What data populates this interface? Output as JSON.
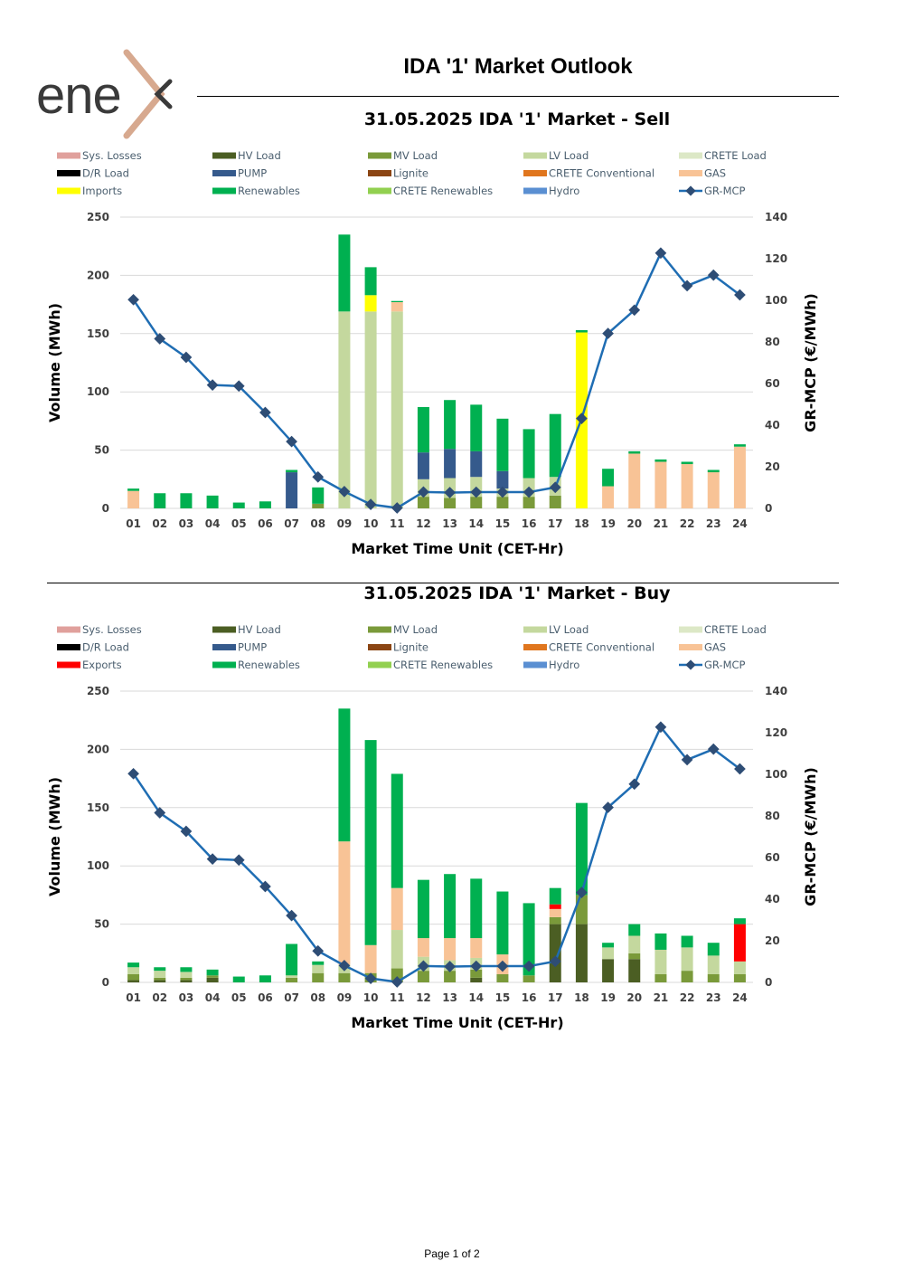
{
  "page": {
    "title": "IDA '1' Market Outlook",
    "footer": "Page 1 of 2",
    "logo_text": "ene"
  },
  "colors": {
    "Sys. Losses": "#e0a09c",
    "HV Load": "#4b5e23",
    "MV Load": "#7a9a3a",
    "LV Load": "#c4d89e",
    "CRETE Load": "#dce8c6",
    "D/R Load": "#000000",
    "PUMP": "#355a8c",
    "Lignite": "#8b4513",
    "CRETE Conventional": "#e0761e",
    "GAS": "#f8c396",
    "Imports": "#ffff00",
    "Exports": "#ff0000",
    "Renewables": "#00b050",
    "CRETE Renewables": "#92d050",
    "Hydro": "#5a8fd2",
    "GR-MCP": "#1f6db3",
    "GR-MCP-marker": "#2e4d75"
  },
  "chart_data": [
    {
      "type": "bar",
      "title": "31.05.2025  IDA '1' Market - Sell",
      "xlabel": "Market Time Unit (CET-Hr)",
      "ylabel": "Volume (MWh)",
      "y2label": "GR-MCP (€/MWh)",
      "ylim": [
        0,
        250
      ],
      "y2lim": [
        0,
        140
      ],
      "yticks": [
        0,
        50,
        100,
        150,
        200,
        250
      ],
      "y2ticks": [
        0,
        20,
        40,
        60,
        80,
        100,
        120,
        140
      ],
      "legend": [
        "Sys. Losses",
        "HV Load",
        "MV Load",
        "LV Load",
        "CRETE Load",
        "D/R Load",
        "PUMP",
        "Lignite",
        "CRETE Conventional",
        "GAS",
        "Imports",
        "Renewables",
        "CRETE Renewables",
        "Hydro",
        "GR-MCP"
      ],
      "categories": [
        "01",
        "02",
        "03",
        "04",
        "05",
        "06",
        "07",
        "08",
        "09",
        "10",
        "11",
        "12",
        "13",
        "14",
        "15",
        "16",
        "17",
        "18",
        "19",
        "20",
        "21",
        "22",
        "23",
        "24"
      ],
      "series": [
        {
          "name": "MV Load",
          "values": [
            0,
            0,
            0,
            0,
            0,
            0,
            0,
            4,
            0,
            0,
            0,
            10,
            9,
            10,
            10,
            10,
            11,
            0,
            0,
            0,
            0,
            0,
            0,
            0
          ]
        },
        {
          "name": "LV Load",
          "values": [
            0,
            0,
            0,
            0,
            0,
            0,
            0,
            0,
            169,
            169,
            169,
            15,
            17,
            17,
            7,
            16,
            16,
            0,
            0,
            0,
            0,
            0,
            0,
            0
          ]
        },
        {
          "name": "PUMP",
          "values": [
            0,
            0,
            0,
            0,
            0,
            0,
            31,
            0,
            0,
            0,
            0,
            23,
            25,
            22,
            15,
            0,
            0,
            0,
            0,
            0,
            0,
            0,
            0,
            0
          ]
        },
        {
          "name": "GAS",
          "values": [
            15,
            0,
            0,
            0,
            0,
            0,
            0,
            0,
            0,
            0,
            8,
            0,
            0,
            0,
            0,
            0,
            0,
            0,
            19,
            47,
            40,
            38,
            31,
            53
          ]
        },
        {
          "name": "Imports",
          "values": [
            0,
            0,
            0,
            0,
            0,
            0,
            0,
            0,
            0,
            14,
            0,
            0,
            0,
            0,
            0,
            0,
            0,
            151,
            0,
            0,
            0,
            0,
            0,
            0
          ]
        },
        {
          "name": "Renewables",
          "values": [
            2,
            13,
            13,
            11,
            5,
            6,
            2,
            14,
            66,
            24,
            1,
            39,
            42,
            40,
            45,
            42,
            54,
            2,
            15,
            2,
            2,
            2,
            2,
            2
          ]
        }
      ],
      "line": {
        "name": "GR-MCP",
        "values": [
          100.3,
          81.5,
          72.6,
          59.3,
          58.8,
          46.1,
          32.1,
          15.1,
          8.1,
          1.9,
          0.2,
          7.9,
          7.6,
          7.8,
          7.8,
          7.8,
          10.1,
          43.2,
          84.1,
          95.3,
          122.7,
          107.0,
          112.1,
          102.6
        ]
      }
    },
    {
      "type": "bar",
      "title": "31.05.2025  IDA '1' Market - Buy",
      "xlabel": "Market Time Unit (CET-Hr)",
      "ylabel": "Volume (MWh)",
      "y2label": "GR-MCP (€/MWh)",
      "ylim": [
        0,
        250
      ],
      "y2lim": [
        0,
        140
      ],
      "yticks": [
        0,
        50,
        100,
        150,
        200,
        250
      ],
      "y2ticks": [
        0,
        20,
        40,
        60,
        80,
        100,
        120,
        140
      ],
      "legend": [
        "Sys. Losses",
        "HV Load",
        "MV Load",
        "LV Load",
        "CRETE Load",
        "D/R Load",
        "PUMP",
        "Lignite",
        "CRETE Conventional",
        "GAS",
        "Exports",
        "Renewables",
        "CRETE Renewables",
        "Hydro",
        "GR-MCP"
      ],
      "categories": [
        "01",
        "02",
        "03",
        "04",
        "05",
        "06",
        "07",
        "08",
        "09",
        "10",
        "11",
        "12",
        "13",
        "14",
        "15",
        "16",
        "17",
        "18",
        "19",
        "20",
        "21",
        "22",
        "23",
        "24"
      ],
      "series": [
        {
          "name": "HV Load",
          "values": [
            2,
            2,
            2,
            4,
            0,
            0,
            0,
            0,
            0,
            0,
            0,
            0,
            0,
            4,
            0,
            0,
            50,
            50,
            20,
            20,
            0,
            0,
            0,
            0
          ]
        },
        {
          "name": "MV Load",
          "values": [
            5,
            2,
            2,
            2,
            0,
            0,
            4,
            8,
            8,
            8,
            12,
            10,
            10,
            7,
            7,
            6,
            6,
            25,
            0,
            5,
            7,
            10,
            7,
            7
          ]
        },
        {
          "name": "LV Load",
          "values": [
            6,
            6,
            5,
            0,
            0,
            0,
            2,
            7,
            7,
            0,
            33,
            12,
            9,
            10,
            0,
            0,
            0,
            0,
            10,
            15,
            21,
            20,
            16,
            11
          ]
        },
        {
          "name": "GAS",
          "values": [
            0,
            0,
            0,
            0,
            0,
            0,
            0,
            0,
            106,
            24,
            36,
            16,
            19,
            17,
            17,
            0,
            7,
            0,
            0,
            0,
            0,
            0,
            0,
            0
          ]
        },
        {
          "name": "Exports",
          "values": [
            0,
            0,
            0,
            0,
            0,
            0,
            0,
            0,
            0,
            0,
            0,
            0,
            0,
            0,
            0,
            0,
            4,
            0,
            0,
            0,
            0,
            0,
            0,
            32
          ]
        },
        {
          "name": "Renewables",
          "values": [
            4,
            3,
            4,
            5,
            5,
            6,
            27,
            3,
            114,
            176,
            98,
            50,
            55,
            51,
            54,
            62,
            14,
            79,
            4,
            10,
            14,
            10,
            11,
            5
          ]
        }
      ],
      "line": {
        "name": "GR-MCP",
        "values": [
          100.3,
          81.5,
          72.6,
          59.3,
          58.8,
          46.1,
          32.1,
          15.1,
          8.1,
          1.9,
          0.2,
          7.9,
          7.6,
          7.8,
          7.8,
          7.8,
          10.1,
          43.2,
          84.1,
          95.3,
          122.7,
          107.0,
          112.1,
          102.6
        ]
      }
    }
  ]
}
